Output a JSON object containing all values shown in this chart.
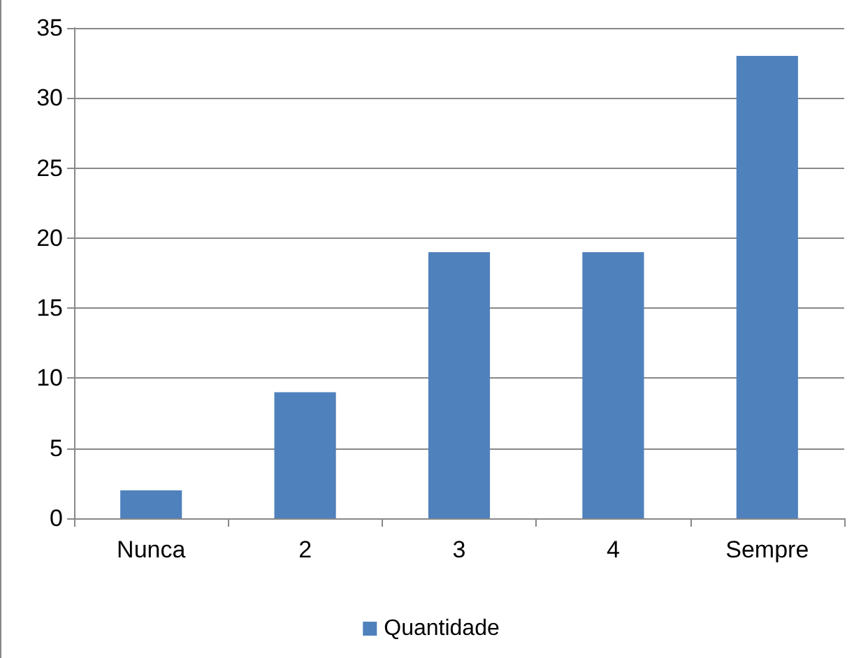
{
  "chart_data": {
    "type": "bar",
    "categories": [
      "Nunca",
      "2",
      "3",
      "4",
      "Sempre"
    ],
    "series": [
      {
        "name": "Quantidade",
        "color": "#4f81bd",
        "values": [
          2,
          9,
          19,
          19,
          33
        ]
      }
    ],
    "ylim": [
      0,
      35
    ],
    "yticks": [
      0,
      5,
      10,
      15,
      20,
      25,
      30,
      35
    ],
    "grid": "y",
    "legend": "bottom"
  }
}
